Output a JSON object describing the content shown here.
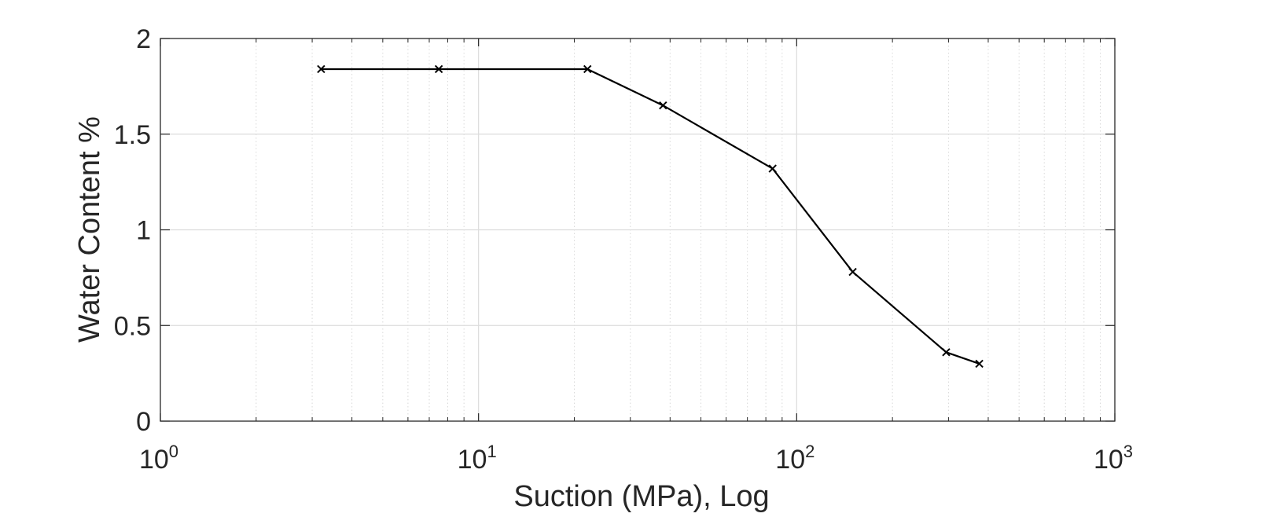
{
  "chart_data": {
    "type": "line",
    "title": "",
    "xlabel": "Suction (MPa), Log",
    "ylabel": "Water Content %",
    "xscale": "log",
    "xlim": [
      1,
      1000
    ],
    "ylim": [
      0,
      2
    ],
    "grid": true,
    "legend": "none",
    "x_ticks": [
      {
        "base": "10",
        "exp": "0",
        "value": 1
      },
      {
        "base": "10",
        "exp": "1",
        "value": 10
      },
      {
        "base": "10",
        "exp": "2",
        "value": 100
      },
      {
        "base": "10",
        "exp": "3",
        "value": 1000
      }
    ],
    "y_ticks": [
      {
        "label": "0",
        "value": 0
      },
      {
        "label": "0.5",
        "value": 0.5
      },
      {
        "label": "1",
        "value": 1
      },
      {
        "label": "1.5",
        "value": 1.5
      },
      {
        "label": "2",
        "value": 2
      }
    ],
    "series": [
      {
        "marker": "x",
        "color": "#000000",
        "x": [
          3.2,
          7.5,
          22,
          38,
          84,
          150,
          295,
          375
        ],
        "y": [
          1.84,
          1.84,
          1.84,
          1.65,
          1.32,
          0.78,
          0.36,
          0.3
        ]
      }
    ]
  }
}
